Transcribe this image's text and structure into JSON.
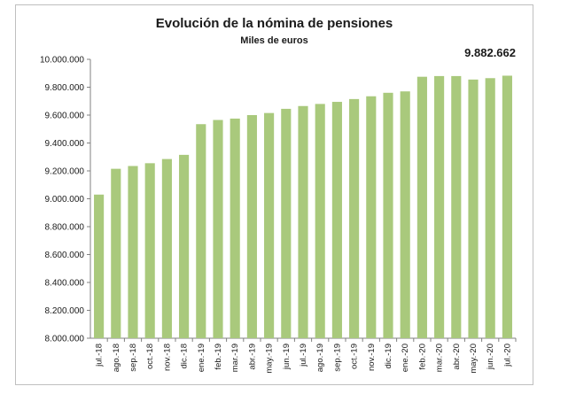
{
  "chart_data": {
    "type": "bar",
    "title": "Evolución de la nómina de pensiones",
    "subtitle": "Miles de euros",
    "highlight_label": "9.882.662",
    "categories": [
      "jul.-18",
      "ago.-18",
      "sep.-18",
      "oct.-18",
      "nov.-18",
      "dic.-18",
      "ene.-19",
      "feb.-19",
      "mar.-19",
      "abr.-19",
      "may.-19",
      "jun.-19",
      "jul.-19",
      "ago.-19",
      "sep.-19",
      "oct.-19",
      "nov.-19",
      "dic.-19",
      "ene.-20",
      "feb.-20",
      "mar.-20",
      "abr.-20",
      "may.-20",
      "jun.-20",
      "jul.-20"
    ],
    "values": [
      9030000,
      9215000,
      9235000,
      9255000,
      9285000,
      9315000,
      9535000,
      9565000,
      9575000,
      9600000,
      9615000,
      9645000,
      9665000,
      9680000,
      9695000,
      9715000,
      9735000,
      9760000,
      9770000,
      9875000,
      9880000,
      9880000,
      9855000,
      9865000,
      9882662
    ],
    "ylim": [
      8000000,
      10000000
    ],
    "yticks": [
      "8.000.000",
      "8.200.000",
      "8.400.000",
      "8.600.000",
      "8.800.000",
      "9.000.000",
      "9.200.000",
      "9.400.000",
      "9.600.000",
      "9.800.000",
      "10.000.000"
    ],
    "bar_color": "#a9c97c",
    "xlabel": "",
    "ylabel": "",
    "grid": false,
    "legend": "none"
  }
}
